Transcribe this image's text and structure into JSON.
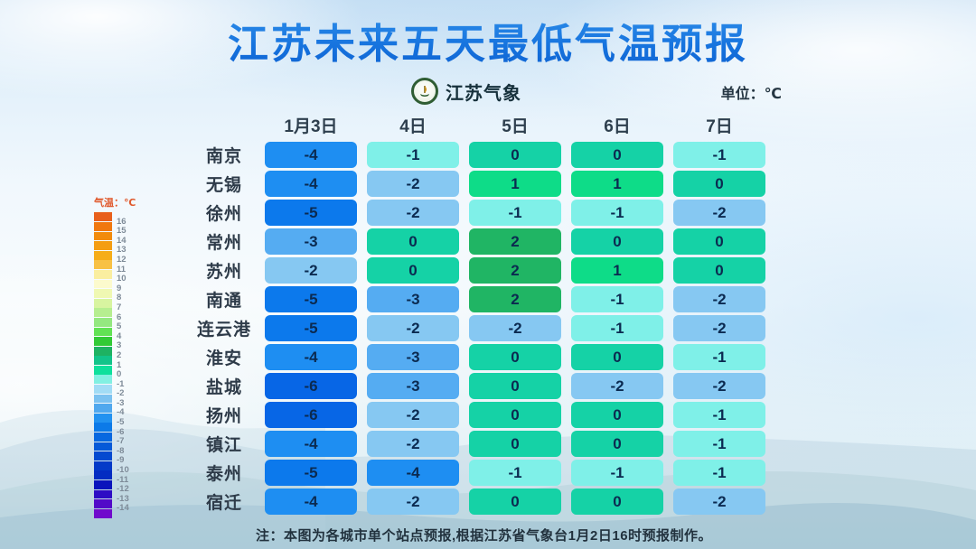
{
  "title": "江苏未来五天最低气温预报",
  "header": {
    "brand": "江苏气象",
    "unit_label": "单位：℃"
  },
  "legend": {
    "title": "气温：℃",
    "blocks": [
      {
        "color": "#e8601c",
        "label": "16"
      },
      {
        "color": "#f0780f",
        "label": "15"
      },
      {
        "color": "#f28b0c",
        "label": "14"
      },
      {
        "color": "#f49d12",
        "label": "13"
      },
      {
        "color": "#f6ad18",
        "label": "12"
      },
      {
        "color": "#f8c145",
        "label": "11"
      },
      {
        "color": "#faeea0",
        "label": "10"
      },
      {
        "color": "#fcfacd",
        "label": "9"
      },
      {
        "color": "#eff8b2",
        "label": "8"
      },
      {
        "color": "#d8f4a0",
        "label": "7"
      },
      {
        "color": "#b6ee90",
        "label": "6"
      },
      {
        "color": "#94e880",
        "label": "5"
      },
      {
        "color": "#62e254",
        "label": "4"
      },
      {
        "color": "#32ca36",
        "label": "3"
      },
      {
        "color": "#1eb262",
        "label": "2"
      },
      {
        "color": "#12c48a",
        "label": "1"
      },
      {
        "color": "#0ee09c",
        "label": "0"
      },
      {
        "color": "#82f0e2",
        "label": "-1"
      },
      {
        "color": "#a2dcf5",
        "label": "-2"
      },
      {
        "color": "#7cc2f0",
        "label": "-3"
      },
      {
        "color": "#50a8ee",
        "label": "-4"
      },
      {
        "color": "#2292f0",
        "label": "-5"
      },
      {
        "color": "#0c7ae8",
        "label": "-6"
      },
      {
        "color": "#0868e0",
        "label": "-7"
      },
      {
        "color": "#0659d8",
        "label": "-8"
      },
      {
        "color": "#044ad0",
        "label": "-9"
      },
      {
        "color": "#043ac8",
        "label": "-10"
      },
      {
        "color": "#042cc2",
        "label": "-11"
      },
      {
        "color": "#0a14bc",
        "label": "-12"
      },
      {
        "color": "#2e0cc4",
        "label": "-13"
      },
      {
        "color": "#520ac8",
        "label": "-14"
      },
      {
        "color": "#700acc",
        "label": ""
      }
    ]
  },
  "value_colors": {
    "2": "#20b564",
    "1": "#0edc88",
    "0": "#15d2a6",
    "-1": "#7ff0e8",
    "-2": "#86c8f2",
    "-3": "#55acf2",
    "-4": "#1e8ef2",
    "-5": "#0c79ec",
    "-6": "#0766e6"
  },
  "footnote": "注：本图为各城市单个站点预报,根据江苏省气象台1月2日16时预报制作。",
  "chart_data": {
    "type": "heatmap",
    "title": "江苏未来五天最低气温预报",
    "unit": "℃",
    "categories": [
      "1月3日",
      "4日",
      "5日",
      "6日",
      "7日"
    ],
    "rows": [
      {
        "city": "南京",
        "values": [
          -4,
          -1,
          0,
          0,
          -1
        ]
      },
      {
        "city": "无锡",
        "values": [
          -4,
          -2,
          1,
          1,
          0
        ]
      },
      {
        "city": "徐州",
        "values": [
          -5,
          -2,
          -1,
          -1,
          -2
        ]
      },
      {
        "city": "常州",
        "values": [
          -3,
          0,
          2,
          0,
          0
        ]
      },
      {
        "city": "苏州",
        "values": [
          -2,
          0,
          2,
          1,
          0
        ]
      },
      {
        "city": "南通",
        "values": [
          -5,
          -3,
          2,
          -1,
          -2
        ]
      },
      {
        "city": "连云港",
        "values": [
          -5,
          -2,
          -2,
          -1,
          -2
        ]
      },
      {
        "city": "淮安",
        "values": [
          -4,
          -3,
          0,
          0,
          -1
        ]
      },
      {
        "city": "盐城",
        "values": [
          -6,
          -3,
          0,
          -2,
          -2
        ]
      },
      {
        "city": "扬州",
        "values": [
          -6,
          -2,
          0,
          0,
          -1
        ]
      },
      {
        "city": "镇江",
        "values": [
          -4,
          -2,
          0,
          0,
          -1
        ]
      },
      {
        "city": "泰州",
        "values": [
          -5,
          -4,
          -1,
          -1,
          -1
        ]
      },
      {
        "city": "宿迁",
        "values": [
          -4,
          -2,
          0,
          0,
          -2
        ]
      }
    ],
    "colorscale_range": [
      -14,
      16
    ],
    "legend_position": "left"
  }
}
